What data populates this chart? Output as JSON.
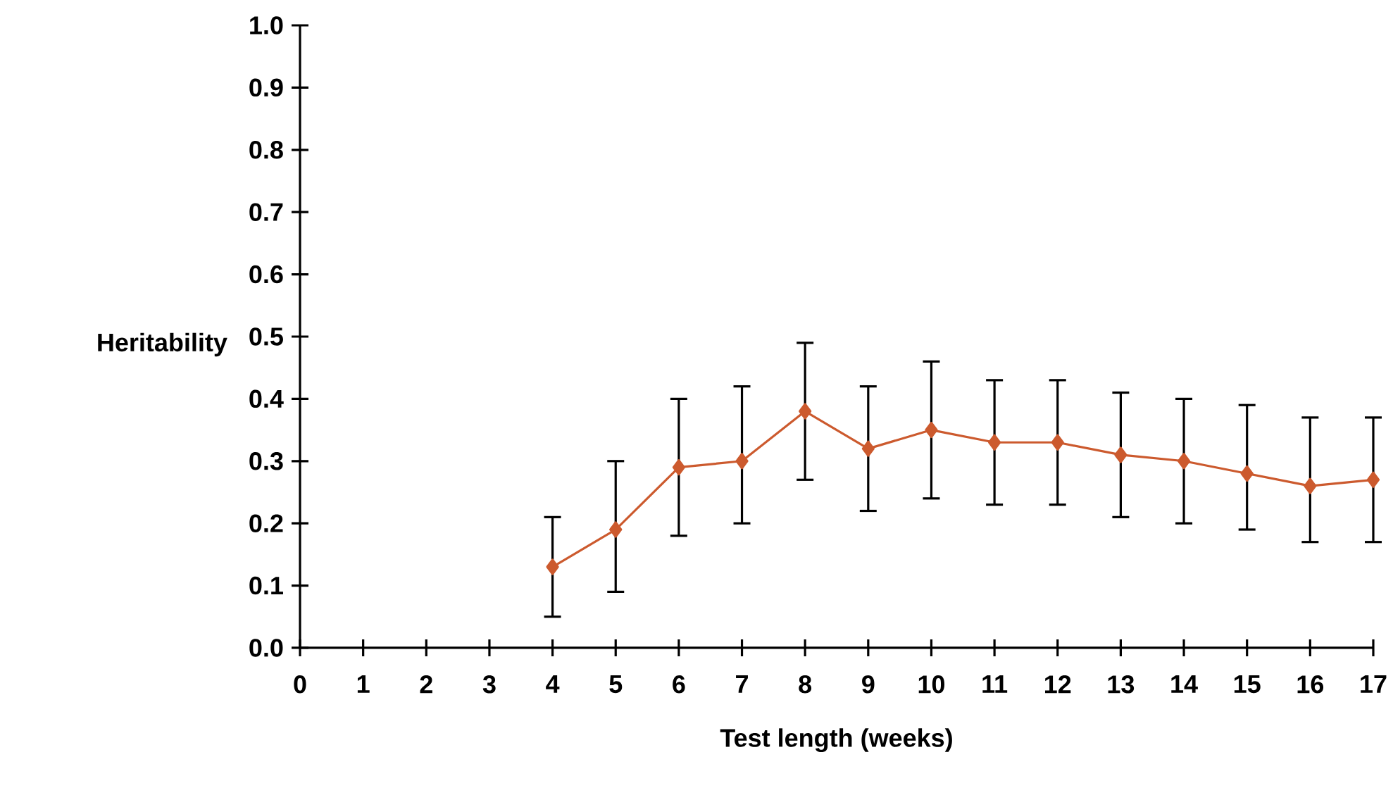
{
  "chart_data": {
    "type": "line",
    "xlabel": "Test length (weeks)",
    "ylabel": "Heritability",
    "x": [
      4,
      5,
      6,
      7,
      8,
      9,
      10,
      11,
      12,
      13,
      14,
      15,
      16,
      17
    ],
    "series": [
      {
        "color": "#cc5a2e",
        "values": [
          0.13,
          0.19,
          0.29,
          0.3,
          0.38,
          0.32,
          0.35,
          0.33,
          0.33,
          0.31,
          0.3,
          0.28,
          0.26,
          0.27
        ],
        "errors": [
          [
            0.05,
            0.21
          ],
          [
            0.09,
            0.3
          ],
          [
            0.18,
            0.4
          ],
          [
            0.2,
            0.42
          ],
          [
            0.27,
            0.49
          ],
          [
            0.22,
            0.42
          ],
          [
            0.24,
            0.46
          ],
          [
            0.23,
            0.43
          ],
          [
            0.23,
            0.43
          ],
          [
            0.21,
            0.41
          ],
          [
            0.2,
            0.4
          ],
          [
            0.19,
            0.39
          ],
          [
            0.17,
            0.37
          ],
          [
            0.17,
            0.37
          ]
        ]
      }
    ],
    "xlim": [
      0,
      17
    ],
    "xticks": [
      0,
      1,
      2,
      3,
      4,
      5,
      6,
      7,
      8,
      9,
      10,
      11,
      12,
      13,
      14,
      15,
      16,
      17
    ],
    "ylim": [
      0,
      1
    ],
    "yticks": [
      {
        "value": 0,
        "label": "0.0"
      },
      0.1,
      0.2,
      0.3,
      0.4,
      0.5,
      0.6,
      0.7,
      0.8,
      0.9,
      {
        "value": 1,
        "label": "1.0"
      }
    ],
    "marker": "diamond",
    "line_style": "solid"
  }
}
